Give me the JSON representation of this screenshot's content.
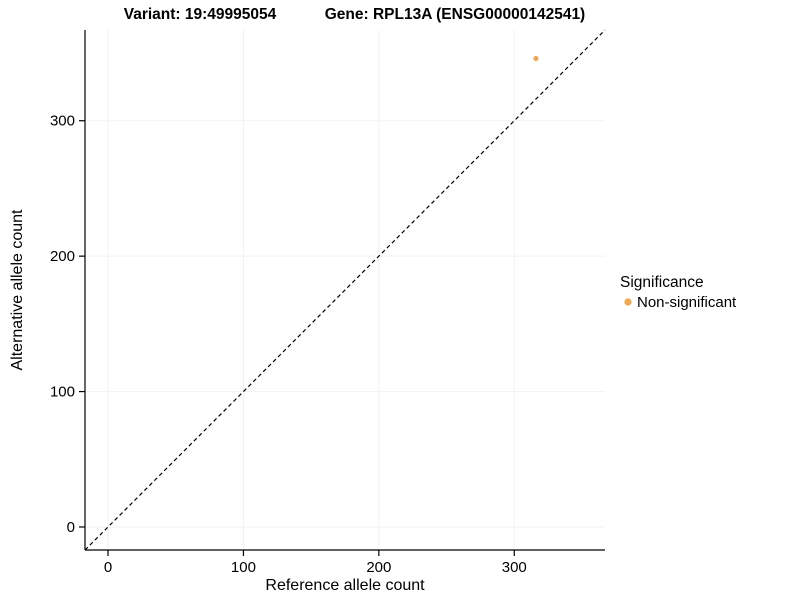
{
  "chart_data": {
    "type": "scatter",
    "title_left": "Variant: 19:49995054",
    "title_right": "Gene: RPL13A (ENSG00000142541)",
    "xlabel": "Reference allele count",
    "ylabel": "Alternative allele count",
    "xlim": [
      -17,
      367
    ],
    "ylim": [
      -17,
      367
    ],
    "xticks": [
      0,
      100,
      200,
      300
    ],
    "yticks": [
      0,
      100,
      200,
      300
    ],
    "grid": true,
    "grid_color": "#f2f2f2",
    "axis_color": "#000000",
    "identity_line": {
      "style": "dashed",
      "color": "#000000",
      "from": -17,
      "to": 367
    },
    "series": [
      {
        "name": "Non-significant",
        "color": "#F5A54A",
        "points": [
          {
            "x": 316,
            "y": 346
          }
        ]
      }
    ],
    "legend": {
      "title": "Significance",
      "position": "right",
      "entries": [
        {
          "label": "Non-significant",
          "color": "#F5A54A"
        }
      ]
    }
  }
}
